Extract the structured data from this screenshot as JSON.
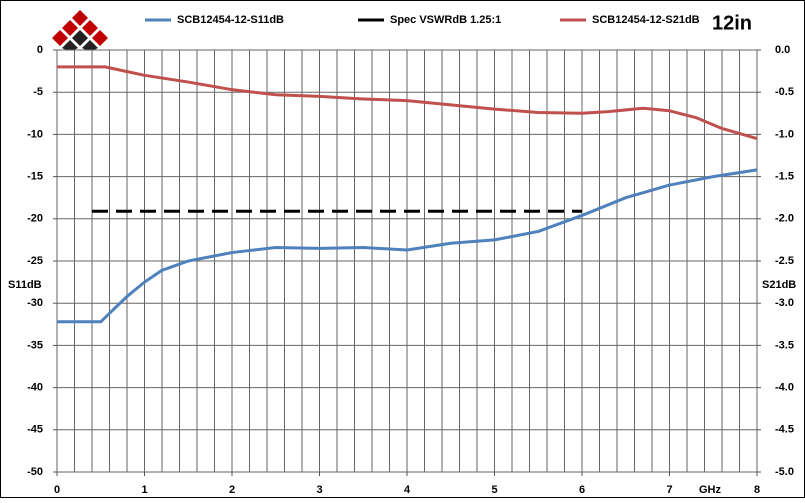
{
  "chart_data": {
    "type": "line",
    "title": "12in",
    "x_label": "GHz",
    "y_label": "S11dB",
    "y2_label": "S21dB",
    "xlim": [
      0,
      8
    ],
    "xticks": [
      0,
      1,
      2,
      3,
      4,
      5,
      6,
      7,
      8
    ],
    "xminorticks": [
      0,
      0.2,
      0.4,
      0.6,
      0.8,
      1,
      1.2,
      1.4,
      1.6,
      1.8,
      2,
      2.2,
      2.4,
      2.6,
      2.8,
      3,
      3.2,
      3.4,
      3.6,
      3.8,
      4,
      4.2,
      4.4,
      4.6,
      4.8,
      5,
      5.2,
      5.4,
      5.6,
      5.8,
      6,
      6.2,
      6.4,
      6.6,
      6.8,
      7,
      7.2,
      7.4,
      7.6,
      7.8,
      8
    ],
    "ylim": [
      -50,
      0
    ],
    "yticks": [
      0,
      -5,
      -10,
      -15,
      -20,
      -25,
      -30,
      -35,
      -40,
      -45,
      -50
    ],
    "y2lim": [
      -5,
      0
    ],
    "y2ticks": [
      {
        "value": 0,
        "label": "0.0"
      },
      -0.5,
      {
        "value": -1,
        "label": "-1.0"
      },
      -1.5,
      {
        "value": -2,
        "label": "-2.0"
      },
      -2.5,
      {
        "value": -3,
        "label": "-3.0"
      },
      -3.5,
      {
        "value": -4,
        "label": "-4.0"
      },
      -4.5,
      {
        "value": -5,
        "label": "-5.0"
      }
    ],
    "grid": true,
    "legend": "top",
    "series": [
      {
        "name": "SCB12454-12-S11dB",
        "color": "#4f81bd",
        "linestyle": "solid",
        "x": [
          0,
          0.5,
          0.6,
          0.8,
          1,
          1.2,
          1.5,
          2,
          2.5,
          3,
          3.5,
          4,
          4.5,
          5,
          5.5,
          6,
          6.5,
          7,
          7.5,
          8
        ],
        "values": [
          -32.2,
          -32.2,
          -31.2,
          -29.2,
          -27.5,
          -26.1,
          -25,
          -24,
          -23.4,
          -23.5,
          -23.4,
          -23.7,
          -22.9,
          -22.5,
          -21.5,
          -19.6,
          -17.5,
          -16,
          -15,
          -14.2
        ]
      },
      {
        "name": "Spec VSWRdB 1.25:1",
        "color": "#000000",
        "linestyle": "dashed",
        "x": [
          0.4,
          6
        ],
        "values": [
          -19.1,
          -19.1
        ]
      },
      {
        "name": "SCB12454-12-S21dB",
        "color": "#c0504d",
        "linestyle": "solid",
        "axis": "y2",
        "x": [
          0,
          0.55,
          1,
          1.5,
          2,
          2.5,
          3,
          3.5,
          4,
          4.5,
          5,
          5.5,
          6,
          6.3,
          6.7,
          7,
          7.3,
          7.6,
          8
        ],
        "values": [
          -0.2,
          -0.2,
          -0.3,
          -0.38,
          -0.47,
          -0.53,
          -0.55,
          -0.58,
          -0.6,
          -0.65,
          -0.7,
          -0.74,
          -0.75,
          -0.73,
          -0.69,
          -0.72,
          -0.8,
          -0.93,
          -1.05
        ]
      }
    ]
  }
}
